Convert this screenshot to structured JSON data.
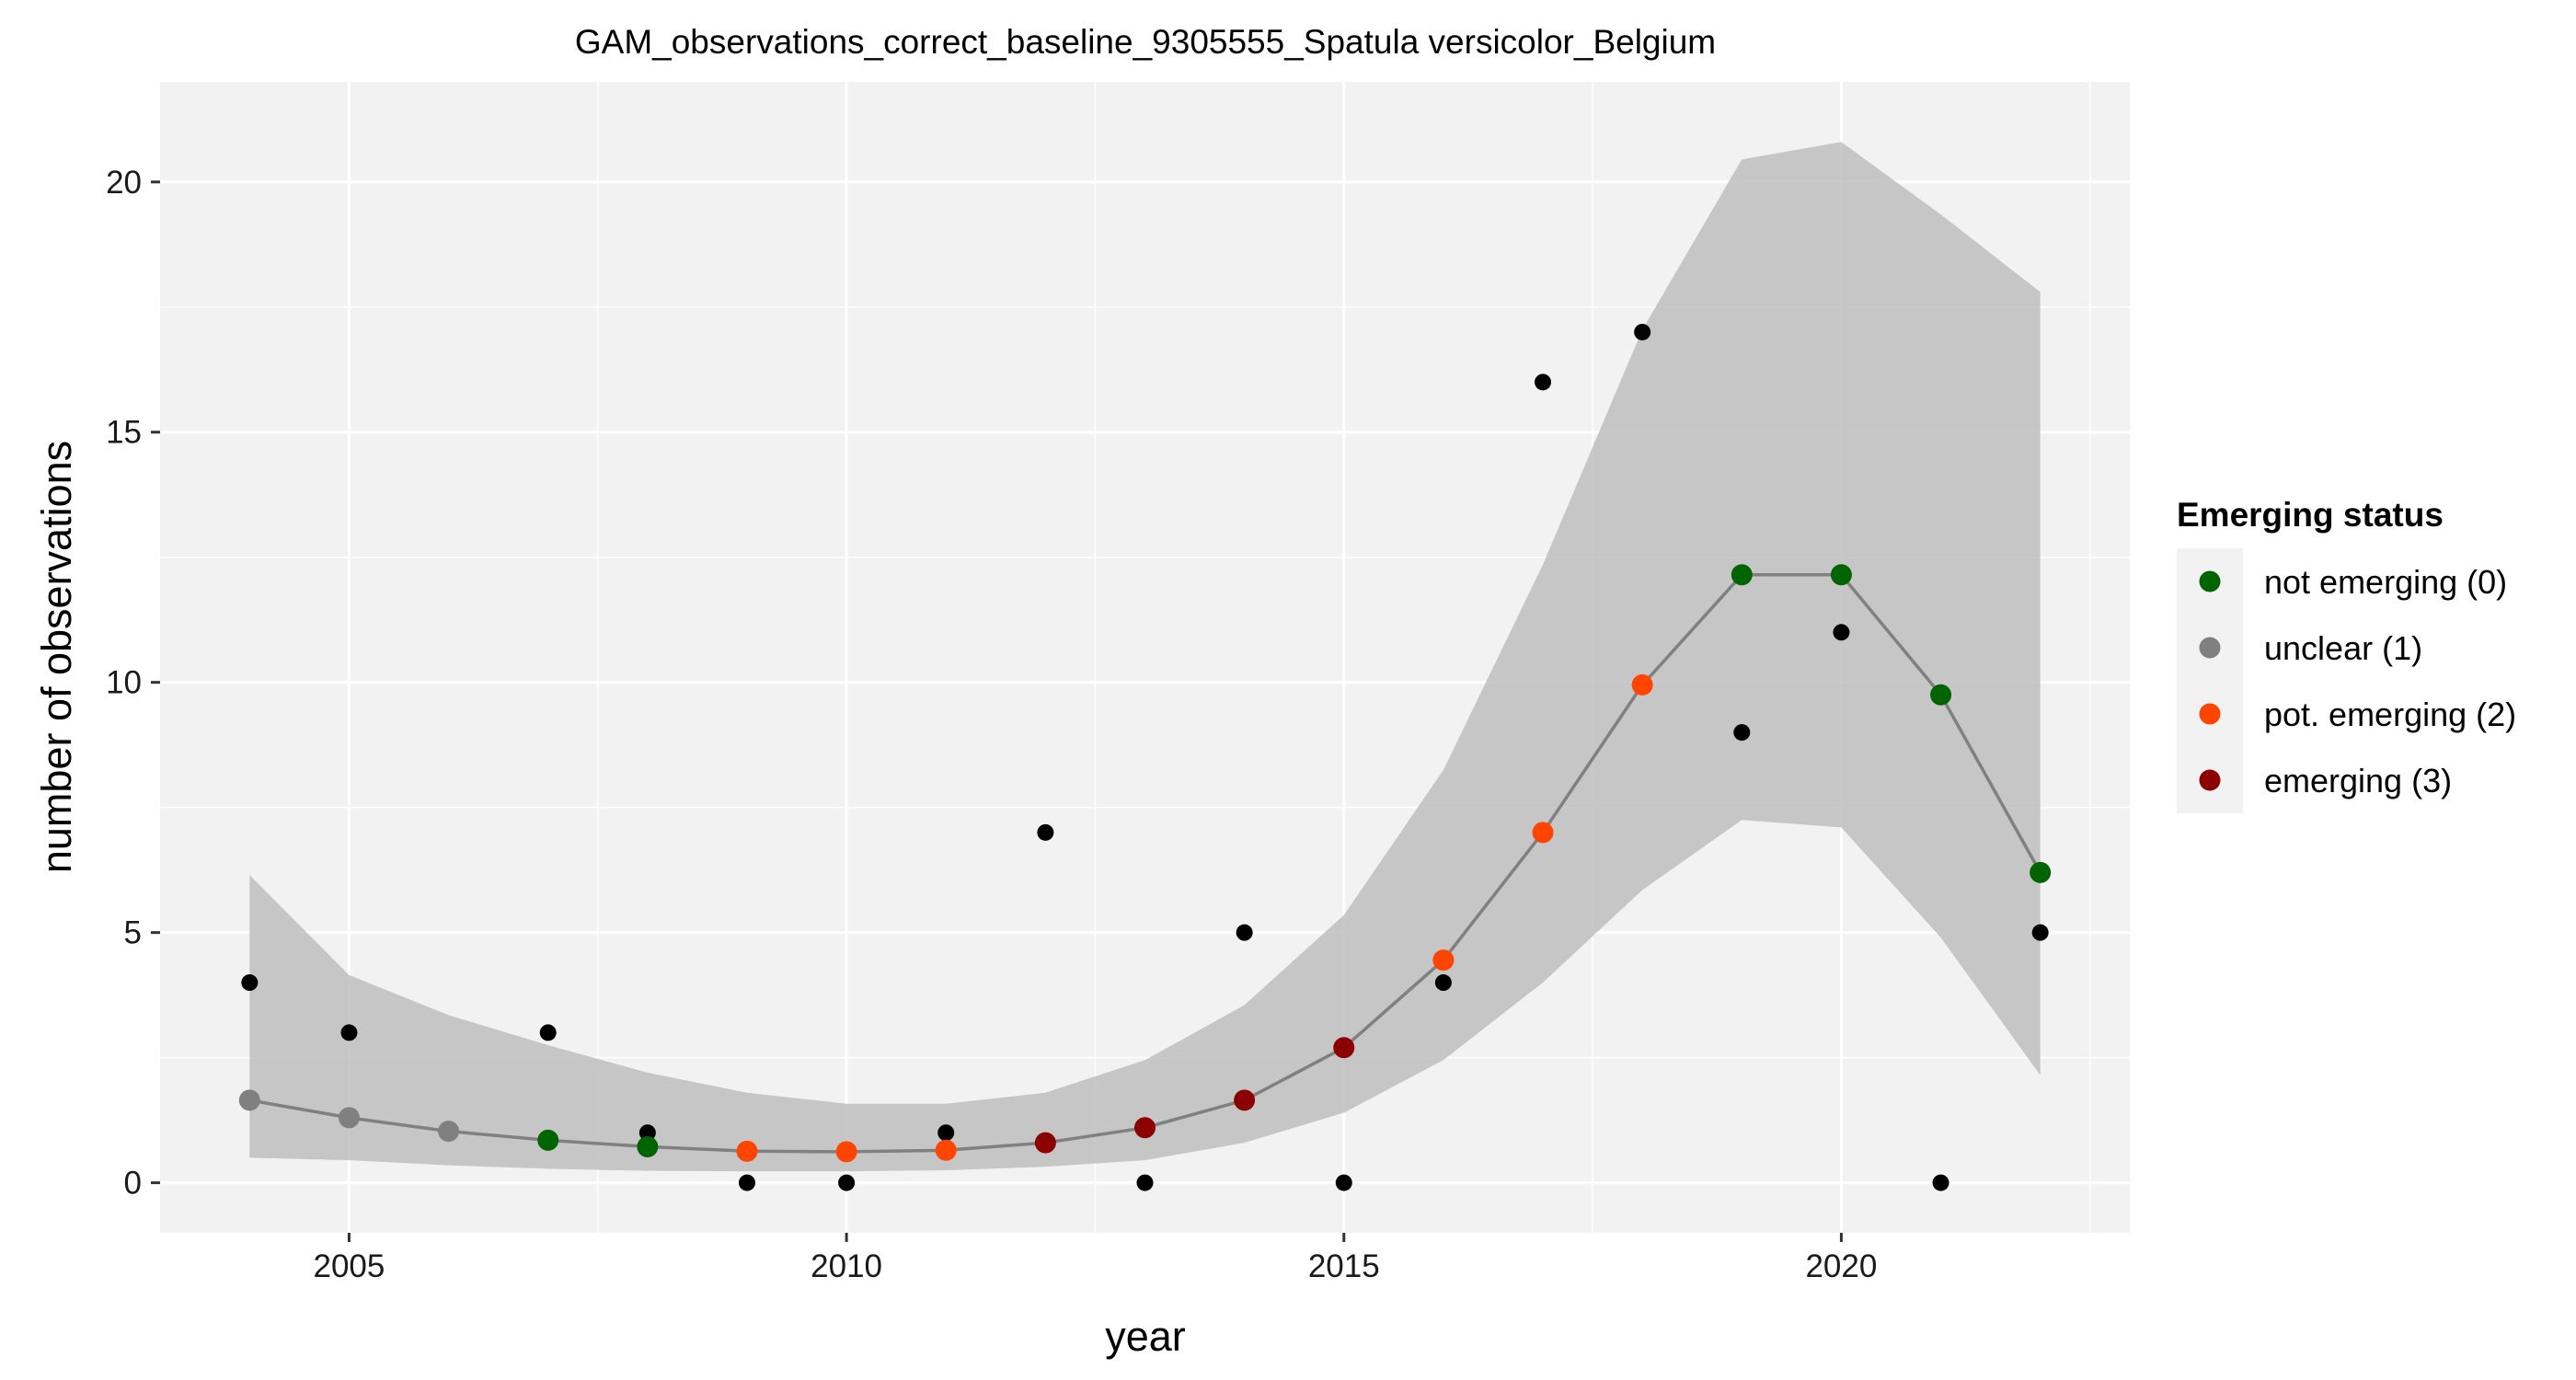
{
  "chart_data": {
    "type": "scatter",
    "title": "GAM_observations_correct_baseline_9305555_Spatula versicolor_Belgium",
    "xlabel": "year",
    "ylabel": "number of observations",
    "xlim": [
      2003.1,
      2022.9
    ],
    "ylim": [
      -1.0,
      22.0
    ],
    "x_ticks": [
      2005,
      2010,
      2015,
      2020
    ],
    "y_ticks": [
      0,
      5,
      10,
      15,
      20
    ],
    "grid": true,
    "legend": {
      "title": "Emerging status",
      "placement": "right",
      "entries": [
        {
          "label": "not emerging (0)",
          "color": "#006400"
        },
        {
          "label": "unclear (1)",
          "color": "#808080"
        },
        {
          "label": "pot. emerging (2)",
          "color": "#FF4500"
        },
        {
          "label": "emerging (3)",
          "color": "#8B0000"
        }
      ]
    },
    "colors": {
      "panel_background": "#F2F2F2",
      "grid": "#FFFFFF",
      "ribbon": "#BEBEBE",
      "fit_line": "#808080",
      "observed_points": "#000000"
    },
    "observed": {
      "x": [
        2004,
        2005,
        2006,
        2007,
        2008,
        2009,
        2010,
        2011,
        2012,
        2013,
        2014,
        2015,
        2016,
        2017,
        2018,
        2019,
        2020,
        2021,
        2022
      ],
      "y": [
        4,
        3,
        1,
        3,
        1,
        0,
        0,
        1,
        7,
        0,
        5,
        0,
        4,
        16,
        17,
        9,
        11,
        0,
        5
      ]
    },
    "fit": {
      "x": [
        2004,
        2005,
        2006,
        2007,
        2008,
        2009,
        2010,
        2011,
        2012,
        2013,
        2014,
        2015,
        2016,
        2017,
        2018,
        2019,
        2020,
        2021,
        2022
      ],
      "y": [
        1.65,
        1.3,
        1.03,
        0.85,
        0.72,
        0.63,
        0.62,
        0.65,
        0.8,
        1.1,
        1.65,
        2.7,
        4.45,
        7.0,
        9.95,
        12.15,
        12.15,
        9.75,
        6.2
      ],
      "lower": [
        0.5,
        0.45,
        0.35,
        0.28,
        0.24,
        0.23,
        0.23,
        0.25,
        0.32,
        0.45,
        0.8,
        1.4,
        2.45,
        4.0,
        5.85,
        7.25,
        7.1,
        4.9,
        2.15
      ],
      "upper": [
        6.15,
        4.15,
        3.35,
        2.75,
        2.2,
        1.8,
        1.58,
        1.58,
        1.8,
        2.45,
        3.55,
        5.35,
        8.25,
        12.35,
        17.05,
        20.45,
        20.8,
        19.35,
        17.8
      ],
      "status": [
        1,
        1,
        1,
        0,
        0,
        2,
        2,
        2,
        3,
        3,
        3,
        3,
        2,
        2,
        2,
        0,
        0,
        0,
        0
      ]
    }
  }
}
